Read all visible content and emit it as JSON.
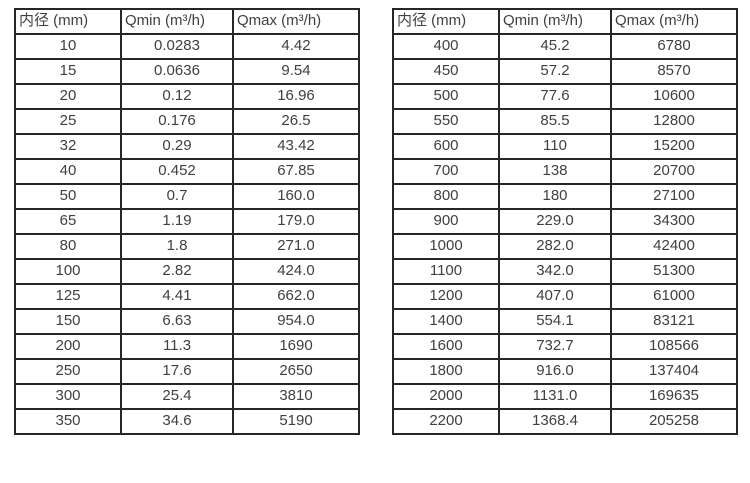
{
  "tables": [
    {
      "name": "small-diameter-flow-table",
      "columns": [
        "内径 (mm)",
        "Qmin (m³/h)",
        "Qmax (m³/h)"
      ],
      "rows": [
        [
          "10",
          "0.0283",
          "4.42"
        ],
        [
          "15",
          "0.0636",
          "9.54"
        ],
        [
          "20",
          "0.12",
          "16.96"
        ],
        [
          "25",
          "0.176",
          "26.5"
        ],
        [
          "32",
          "0.29",
          "43.42"
        ],
        [
          "40",
          "0.452",
          "67.85"
        ],
        [
          "50",
          "0.7",
          "160.0"
        ],
        [
          "65",
          "1.19",
          "179.0"
        ],
        [
          "80",
          "1.8",
          "271.0"
        ],
        [
          "100",
          "2.82",
          "424.0"
        ],
        [
          "125",
          "4.41",
          "662.0"
        ],
        [
          "150",
          "6.63",
          "954.0"
        ],
        [
          "200",
          "11.3",
          "1690"
        ],
        [
          "250",
          "17.6",
          "2650"
        ],
        [
          "300",
          "25.4",
          "3810"
        ],
        [
          "350",
          "34.6",
          "5190"
        ]
      ]
    },
    {
      "name": "large-diameter-flow-table",
      "columns": [
        "内径 (mm)",
        "Qmin (m³/h)",
        "Qmax (m³/h)"
      ],
      "rows": [
        [
          "400",
          "45.2",
          "6780"
        ],
        [
          "450",
          "57.2",
          "8570"
        ],
        [
          "500",
          "77.6",
          "10600"
        ],
        [
          "550",
          "85.5",
          "12800"
        ],
        [
          "600",
          "110",
          "15200"
        ],
        [
          "700",
          "138",
          "20700"
        ],
        [
          "800",
          "180",
          "27100"
        ],
        [
          "900",
          "229.0",
          "34300"
        ],
        [
          "1000",
          "282.0",
          "42400"
        ],
        [
          "1100",
          "342.0",
          "51300"
        ],
        [
          "1200",
          "407.0",
          "61000"
        ],
        [
          "1400",
          "554.1",
          "83121"
        ],
        [
          "1600",
          "732.7",
          "108566"
        ],
        [
          "1800",
          "916.0",
          "137404"
        ],
        [
          "2000",
          "1131.0",
          "169635"
        ],
        [
          "2200",
          "1368.4",
          "205258"
        ]
      ]
    }
  ],
  "colors": {
    "border": "#262626",
    "text": "#404040",
    "background": "#ffffff"
  },
  "chart_data": {
    "type": "table",
    "title": "",
    "tables": [
      {
        "columns": [
          "内径 (mm)",
          "Qmin (m³/h)",
          "Qmax (m³/h)"
        ],
        "diameters_mm": [
          10,
          15,
          20,
          25,
          32,
          40,
          50,
          65,
          80,
          100,
          125,
          150,
          200,
          250,
          300,
          350
        ],
        "qmin_m3h": [
          0.0283,
          0.0636,
          0.12,
          0.176,
          0.29,
          0.452,
          0.7,
          1.19,
          1.8,
          2.82,
          4.41,
          6.63,
          11.3,
          17.6,
          25.4,
          34.6
        ],
        "qmax_m3h": [
          4.42,
          9.54,
          16.96,
          26.5,
          43.42,
          67.85,
          160.0,
          179.0,
          271.0,
          424.0,
          662.0,
          954.0,
          1690,
          2650,
          3810,
          5190
        ]
      },
      {
        "columns": [
          "内径 (mm)",
          "Qmin (m³/h)",
          "Qmax (m³/h)"
        ],
        "diameters_mm": [
          400,
          450,
          500,
          550,
          600,
          700,
          800,
          900,
          1000,
          1100,
          1200,
          1400,
          1600,
          1800,
          2000,
          2200
        ],
        "qmin_m3h": [
          45.2,
          57.2,
          77.6,
          85.5,
          110,
          138,
          180,
          229.0,
          282.0,
          342.0,
          407.0,
          554.1,
          732.7,
          916.0,
          1131.0,
          1368.4
        ],
        "qmax_m3h": [
          6780,
          8570,
          10600,
          12800,
          15200,
          20700,
          27100,
          34300,
          42400,
          51300,
          61000,
          83121,
          108566,
          137404,
          169635,
          205258
        ]
      }
    ]
  }
}
